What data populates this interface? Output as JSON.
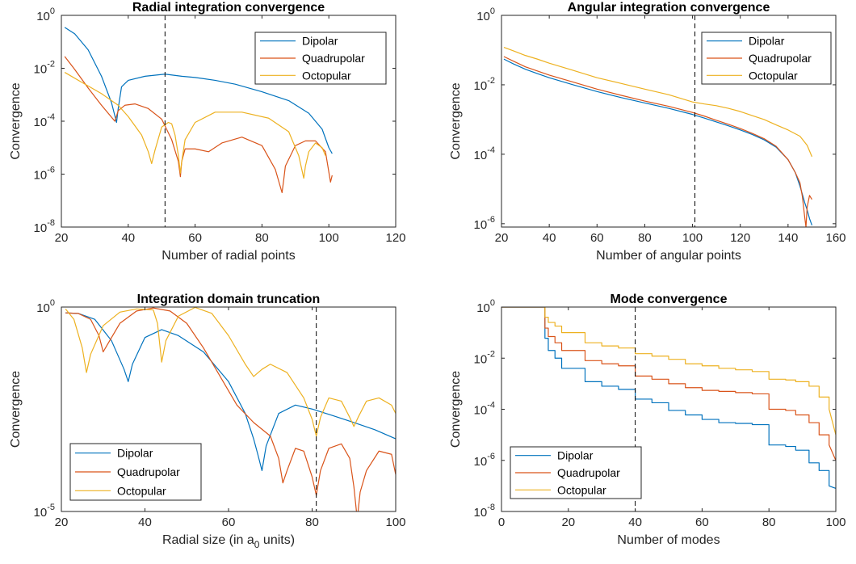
{
  "chart_data": [
    {
      "type": "line",
      "title": "Radial integration convergence",
      "xlabel": "Number of radial points",
      "ylabel": "Convergence",
      "xscale": "linear",
      "yscale": "log",
      "xlim": [
        20,
        120
      ],
      "ylim": [
        1e-08,
        1
      ],
      "xticks": [
        "20",
        "40",
        "60",
        "80",
        "100",
        "120"
      ],
      "yticks": [
        {
          "base": "10",
          "exp": "-8"
        },
        {
          "base": "10",
          "exp": "-6"
        },
        {
          "base": "10",
          "exp": "-4"
        },
        {
          "base": "10",
          "exp": "-2"
        },
        {
          "base": "10",
          "exp": "0"
        }
      ],
      "vline": 51,
      "legend_position": "top-right",
      "grid": false,
      "series": [
        {
          "name": "Dipolar",
          "color": "#0072BD",
          "x": [
            21,
            24,
            28,
            32,
            35,
            36.5,
            37,
            38,
            40,
            45,
            51,
            56,
            60,
            66,
            72,
            80,
            88,
            94,
            98,
            100,
            101
          ],
          "y": [
            0.35,
            0.2,
            0.05,
            0.005,
            0.0005,
            9e-05,
            0.0003,
            0.002,
            0.0035,
            0.005,
            0.006,
            0.005,
            0.0045,
            0.0035,
            0.0025,
            0.0013,
            0.0006,
            0.0002,
            5e-05,
            1e-05,
            6e-06
          ]
        },
        {
          "name": "Quadrupolar",
          "color": "#D95319",
          "x": [
            21,
            24,
            28,
            32,
            36,
            37,
            39,
            42,
            46,
            50,
            53,
            55,
            55.6,
            56,
            57,
            60,
            64,
            68,
            74,
            80,
            84,
            86,
            86.5,
            87,
            90,
            93,
            96,
            99,
            100.5,
            101
          ],
          "y": [
            0.028,
            0.009,
            0.0018,
            0.0004,
            0.0001,
            0.00025,
            0.0004,
            0.00045,
            0.0003,
            0.00012,
            2e-05,
            3e-06,
            8e-07,
            3e-06,
            9e-06,
            9e-06,
            7e-06,
            1.5e-05,
            2.5e-05,
            1.2e-05,
            1.5e-06,
            2e-07,
            6e-07,
            2e-06,
            1.2e-05,
            1.8e-05,
            1.8e-05,
            7e-06,
            5e-07,
            9e-07
          ]
        },
        {
          "name": "Octopular",
          "color": "#EDB120",
          "x": [
            21,
            26,
            32,
            37,
            40,
            44,
            46,
            47,
            48,
            50,
            52,
            53,
            54,
            55,
            55.6,
            56,
            57,
            60,
            66,
            74,
            82,
            88,
            91,
            92.5,
            93,
            94,
            96,
            98,
            99
          ],
          "y": [
            0.007,
            0.003,
            0.0011,
            0.0004,
            0.00015,
            3e-05,
            7e-06,
            2.5e-06,
            8e-06,
            6e-05,
            9e-05,
            8e-05,
            3e-05,
            5e-06,
            1.1e-06,
            3e-06,
            2e-05,
            9e-05,
            0.00022,
            0.00022,
            0.00013,
            4e-05,
            5e-06,
            7e-07,
            2e-06,
            7e-06,
            1.5e-05,
            1e-05,
            5e-06
          ]
        }
      ]
    },
    {
      "type": "line",
      "title": "Angular integration convergence",
      "xlabel": "Number of angular points",
      "ylabel": "Convergence",
      "xscale": "linear",
      "yscale": "log",
      "xlim": [
        20,
        160
      ],
      "ylim": [
        8e-07,
        1
      ],
      "xticks": [
        "20",
        "40",
        "60",
        "80",
        "100",
        "120",
        "140",
        "160"
      ],
      "yticks": [
        {
          "base": "10",
          "exp": "-6"
        },
        {
          "base": "10",
          "exp": "-4"
        },
        {
          "base": "10",
          "exp": "-2"
        },
        {
          "base": "10",
          "exp": "0"
        }
      ],
      "vline": 101,
      "legend_position": "top-right",
      "grid": false,
      "series": [
        {
          "name": "Dipolar",
          "color": "#0072BD",
          "x": [
            21,
            25,
            30,
            35,
            40,
            50,
            60,
            70,
            80,
            90,
            100,
            105,
            110,
            115,
            120,
            125,
            130,
            135,
            140,
            143,
            145,
            146,
            147,
            148,
            149,
            150
          ],
          "y": [
            0.055,
            0.04,
            0.028,
            0.021,
            0.016,
            0.01,
            0.0064,
            0.0043,
            0.003,
            0.0021,
            0.0014,
            0.0011,
            0.00085,
            0.00066,
            0.0005,
            0.00037,
            0.00026,
            0.00016,
            7e-05,
            3e-05,
            1.2e-05,
            7e-06,
            4e-06,
            2.5e-06,
            1.4e-06,
            9e-07
          ]
        },
        {
          "name": "Quadrupolar",
          "color": "#D95319",
          "x": [
            21,
            25,
            30,
            35,
            40,
            50,
            60,
            70,
            80,
            90,
            100,
            105,
            110,
            115,
            120,
            125,
            130,
            135,
            140,
            143,
            145,
            146,
            147,
            147.5,
            148,
            149,
            150
          ],
          "y": [
            0.065,
            0.048,
            0.033,
            0.025,
            0.019,
            0.012,
            0.0075,
            0.005,
            0.0034,
            0.0024,
            0.0016,
            0.00125,
            0.00095,
            0.00073,
            0.00055,
            0.0004,
            0.00028,
            0.00017,
            7e-05,
            3e-05,
            1.5e-05,
            6e-06,
            1.5e-06,
            8e-07,
            3e-06,
            6.5e-06,
            5e-06
          ]
        },
        {
          "name": "Octopular",
          "color": "#EDB120",
          "x": [
            21,
            25,
            30,
            35,
            40,
            50,
            60,
            70,
            80,
            90,
            100,
            105,
            110,
            115,
            120,
            125,
            130,
            135,
            140,
            145,
            148,
            150
          ],
          "y": [
            0.12,
            0.095,
            0.07,
            0.055,
            0.042,
            0.026,
            0.016,
            0.011,
            0.0075,
            0.0052,
            0.0032,
            0.0028,
            0.0025,
            0.0021,
            0.0017,
            0.0013,
            0.001,
            0.0007,
            0.0005,
            0.00033,
            0.00018,
            8.5e-05
          ]
        }
      ]
    },
    {
      "type": "line",
      "title": "Integration domain truncation",
      "xlabel": "Radial size (in a",
      "xlabel_sub": "0",
      "xlabel_tail": " units)",
      "ylabel": "Convergence",
      "xscale": "linear",
      "yscale": "log",
      "xlim": [
        20,
        100
      ],
      "ylim": [
        1e-05,
        1
      ],
      "xticks": [
        "20",
        "40",
        "60",
        "80",
        "100"
      ],
      "yticks": [
        {
          "base": "10",
          "exp": "-5"
        },
        {
          "base": "10",
          "exp": "0"
        }
      ],
      "vline": 81,
      "legend_position": "bottom-left",
      "grid": false,
      "series": [
        {
          "name": "Dipolar",
          "color": "#0072BD",
          "x": [
            21,
            24,
            28,
            32,
            35,
            36,
            37,
            40,
            44,
            48,
            54,
            60,
            64,
            66,
            67,
            68,
            69,
            72,
            76,
            80,
            85,
            90,
            95,
            100
          ],
          "y": [
            0.72,
            0.7,
            0.5,
            0.15,
            0.03,
            0.015,
            0.04,
            0.18,
            0.28,
            0.2,
            0.08,
            0.015,
            0.0025,
            0.0006,
            0.00025,
            0.0001,
            0.0004,
            0.0025,
            0.004,
            0.0032,
            0.0022,
            0.0015,
            0.001,
            0.0006
          ]
        },
        {
          "name": "Quadrupolar",
          "color": "#D95319",
          "x": [
            21,
            24,
            27,
            29,
            30,
            31,
            34,
            38,
            42,
            46,
            50,
            54,
            58,
            62,
            66,
            70,
            72,
            73,
            74,
            76,
            78,
            80,
            81,
            82,
            84,
            87,
            89,
            90,
            90.8,
            91.5,
            93,
            96,
            99,
            100
          ],
          "y": [
            0.72,
            0.7,
            0.5,
            0.2,
            0.08,
            0.12,
            0.4,
            0.8,
            0.95,
            0.8,
            0.4,
            0.1,
            0.02,
            0.004,
            0.0015,
            0.0007,
            0.0002,
            5e-05,
            0.0001,
            0.00035,
            0.0003,
            7e-05,
            2.5e-05,
            0.0001,
            0.00035,
            0.00045,
            0.0002,
            4e-05,
            6.5e-06,
            3e-05,
            0.0001,
            0.0003,
            0.00025,
            8e-05
          ]
        },
        {
          "name": "Octopular",
          "color": "#EDB120",
          "x": [
            21,
            23,
            25,
            26,
            27,
            30,
            34,
            38,
            42,
            43,
            44,
            45,
            48,
            52,
            56,
            60,
            64,
            66,
            68,
            70,
            74,
            78,
            80,
            81,
            82,
            84,
            87,
            89,
            90,
            91,
            93,
            96,
            99,
            100
          ],
          "y": [
            0.9,
            0.5,
            0.1,
            0.025,
            0.07,
            0.35,
            0.75,
            0.9,
            0.85,
            0.4,
            0.045,
            0.15,
            0.6,
            0.98,
            0.7,
            0.2,
            0.04,
            0.02,
            0.03,
            0.04,
            0.025,
            0.006,
            0.0018,
            0.0007,
            0.002,
            0.006,
            0.005,
            0.002,
            0.0012,
            0.002,
            0.005,
            0.006,
            0.004,
            0.0025
          ]
        }
      ]
    },
    {
      "type": "line",
      "title": "Mode convergence",
      "xlabel": "Number of modes",
      "ylabel": "Convergence",
      "xscale": "linear",
      "yscale": "log",
      "xlim": [
        0,
        100
      ],
      "ylim": [
        1e-08,
        1
      ],
      "xticks": [
        "0",
        "20",
        "40",
        "60",
        "80",
        "100"
      ],
      "yticks": [
        {
          "base": "10",
          "exp": "-8"
        },
        {
          "base": "10",
          "exp": "-6"
        },
        {
          "base": "10",
          "exp": "-4"
        },
        {
          "base": "10",
          "exp": "-2"
        },
        {
          "base": "10",
          "exp": "0"
        }
      ],
      "vline": 40,
      "legend_position": "bottom-left",
      "grid": false,
      "series": [
        {
          "name": "Dipolar",
          "color": "#0072BD",
          "x": [
            0,
            13,
            13,
            14,
            14,
            16,
            16,
            18,
            18,
            25,
            25,
            30,
            30,
            35,
            35,
            40,
            40,
            45,
            45,
            50,
            50,
            55,
            55,
            60,
            60,
            65,
            65,
            70,
            70,
            75,
            75,
            80,
            80,
            85,
            85,
            88,
            88,
            92,
            92,
            95,
            95,
            98,
            98,
            100
          ],
          "y": [
            1,
            1,
            0.06,
            0.06,
            0.02,
            0.02,
            0.01,
            0.01,
            0.004,
            0.004,
            0.0012,
            0.0012,
            0.0008,
            0.0008,
            0.0006,
            0.0006,
            0.00025,
            0.00025,
            0.00018,
            0.00018,
            9e-05,
            9e-05,
            6e-05,
            6e-05,
            4e-05,
            4e-05,
            3e-05,
            3e-05,
            2.8e-05,
            2.8e-05,
            2.5e-05,
            2.5e-05,
            4e-06,
            4e-06,
            3.5e-06,
            3.5e-06,
            2.5e-06,
            2.5e-06,
            8e-07,
            8e-07,
            4e-07,
            4e-07,
            1e-07,
            8e-08
          ]
        },
        {
          "name": "Quadrupolar",
          "color": "#D95319",
          "x": [
            0,
            13,
            13,
            14,
            14,
            16,
            16,
            18,
            18,
            25,
            25,
            30,
            30,
            35,
            35,
            40,
            40,
            45,
            45,
            50,
            50,
            55,
            55,
            60,
            60,
            65,
            65,
            70,
            70,
            75,
            75,
            80,
            80,
            85,
            85,
            88,
            88,
            92,
            92,
            95,
            95,
            98,
            98,
            100
          ],
          "y": [
            1,
            1,
            0.15,
            0.15,
            0.07,
            0.07,
            0.04,
            0.04,
            0.02,
            0.02,
            0.008,
            0.008,
            0.006,
            0.006,
            0.005,
            0.005,
            0.002,
            0.002,
            0.0015,
            0.0015,
            0.001,
            0.001,
            0.0007,
            0.0007,
            0.00055,
            0.00055,
            0.0005,
            0.0005,
            0.00045,
            0.00045,
            0.0004,
            0.0004,
            0.0001,
            0.0001,
            9e-05,
            9e-05,
            6e-05,
            6e-05,
            3e-05,
            3e-05,
            1e-05,
            1e-05,
            4e-06,
            1e-06
          ]
        },
        {
          "name": "Octopular",
          "color": "#EDB120",
          "x": [
            0,
            13,
            13,
            14,
            14,
            16,
            16,
            18,
            18,
            25,
            25,
            30,
            30,
            35,
            35,
            40,
            40,
            45,
            45,
            50,
            50,
            55,
            55,
            60,
            60,
            65,
            65,
            70,
            70,
            75,
            75,
            80,
            80,
            85,
            85,
            88,
            88,
            92,
            92,
            95,
            95,
            98,
            98,
            100
          ],
          "y": [
            1,
            1,
            0.4,
            0.4,
            0.25,
            0.25,
            0.18,
            0.18,
            0.1,
            0.1,
            0.04,
            0.04,
            0.03,
            0.03,
            0.025,
            0.025,
            0.015,
            0.015,
            0.012,
            0.012,
            0.009,
            0.009,
            0.006,
            0.006,
            0.005,
            0.005,
            0.004,
            0.004,
            0.0035,
            0.0035,
            0.003,
            0.003,
            0.0015,
            0.0015,
            0.0014,
            0.0014,
            0.0012,
            0.0012,
            0.0008,
            0.0008,
            0.0003,
            0.0003,
            0.0001,
            1e-05
          ]
        }
      ]
    }
  ]
}
